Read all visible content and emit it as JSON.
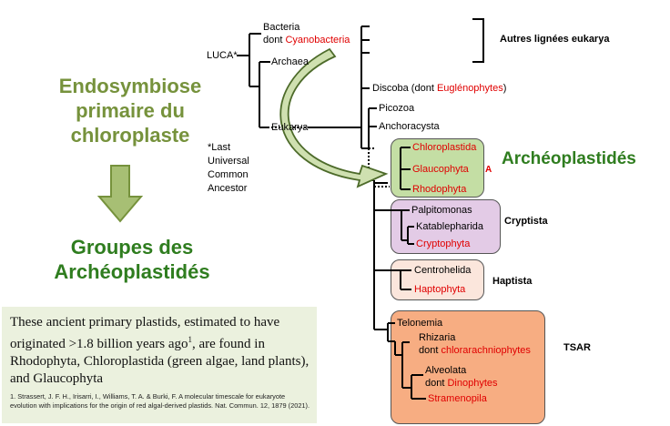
{
  "left": {
    "title_line1": "Endosymbiose",
    "title_line2": "primaire du",
    "title_line3": "chloroplaste",
    "result_line1": "Groupes des",
    "result_line2": "Archéoplastidés"
  },
  "tree": {
    "luca": "LUCA*",
    "bacteria": "Bacteria",
    "dont": "dont ",
    "cyanobacteria": "Cyanobacteria",
    "archaea": "Archaea",
    "eukarya": "Eukarya",
    "footnote_line1": "*Last",
    "footnote_line2": "Universal",
    "footnote_line3": "Common",
    "footnote_line4": "Ancestor",
    "autres": "Autres lignées eukarya",
    "discoba": "Discoba (dont ",
    "euglenophytes": "Euglénophytes",
    "discoba_close": ")",
    "picozoa": "Picozoa",
    "anchoracysta": "Anchoracysta",
    "chloroplastida": "Chloroplastida",
    "glaucophyta": "Glaucophyta",
    "rhodophyta": "Rhodophyta",
    "a_mark": "A",
    "archeoplastides": "Archéoplastidés",
    "palpitomonas": "Palpitomonas",
    "katablepharida": "Katablepharida",
    "cryptophyta": "Cryptophyta",
    "cryptista": "Cryptista",
    "centrohelida": "Centrohelida",
    "haptophyta": "Haptophyta",
    "haptista": "Haptista",
    "telonemia": "Telonemia",
    "rhizaria": "Rhizaria",
    "chlorarachniophytes": "chlorarachniophytes",
    "alveolata": "Alveolata",
    "dinophytes": "Dinophytes",
    "stramenopila": "Stramenopila",
    "tsar": "TSAR"
  },
  "textbox": {
    "main_before": "These ancient primary plastids, estimated to have originated >1.8 billion years ago",
    "sup": "1",
    "main_after": ", are found in Rhodophyta, Chloroplastida (green algae, land plants), and Glaucophyta",
    "ref": "1. Strassert, J. F. H., Irisarri, I., Williams, T. A. & Burki, F. A molecular timescale for eukaryote evolution with implications for the origin of red algal-derived plastids. Nat. Commun. 12, 1879 (2021)."
  },
  "colors": {
    "olive_green": "#76923c",
    "dark_green": "#2f7d1f",
    "red": "#e00000",
    "archaeplastida_box": "#c4dea4",
    "cryptista_box": "#e3cbe6",
    "haptista_box": "#fbe6dc",
    "tsar_box": "#f7ad82",
    "textbox_bg": "#ebf1de"
  }
}
